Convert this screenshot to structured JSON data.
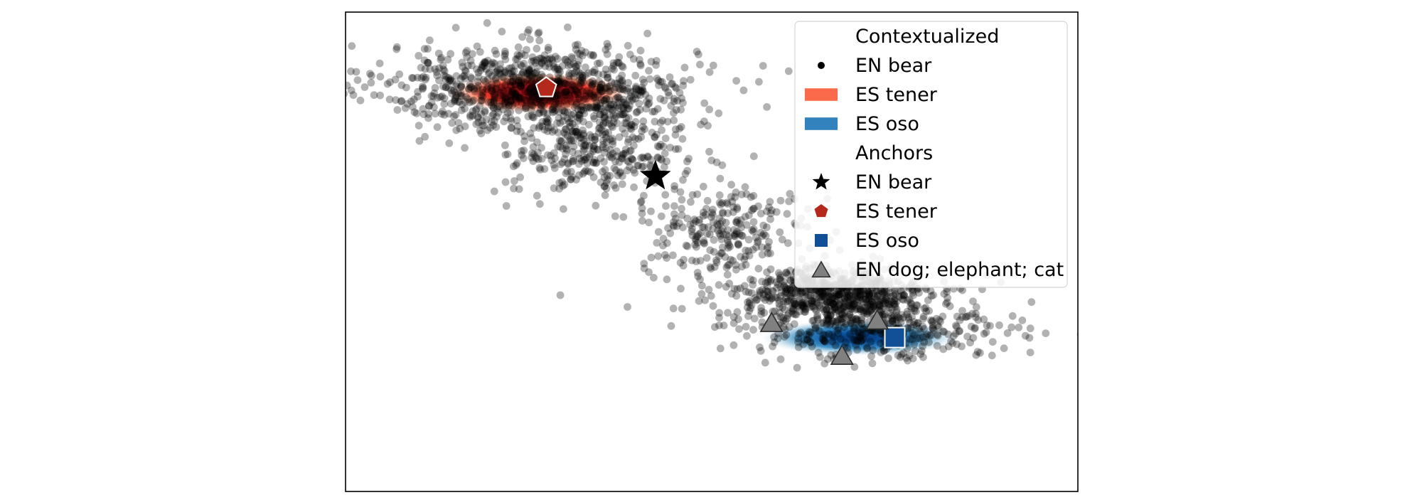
{
  "chart_data": {
    "type": "scatter",
    "title": "",
    "xlabel": "",
    "ylabel": "",
    "axes_ticks": "none",
    "grid": false,
    "legend_position": "top-right",
    "legend": {
      "sections": [
        {
          "heading": "Contextualized",
          "entries": [
            {
              "label": "EN bear",
              "marker": "dot",
              "color": "#000000"
            },
            {
              "label": "ES tener",
              "marker": "patch",
              "color": "#fb6a4a"
            },
            {
              "label": "ES oso",
              "marker": "patch",
              "color": "#3182bd"
            }
          ]
        },
        {
          "heading": "Anchors",
          "entries": [
            {
              "label": "EN bear",
              "marker": "star",
              "color": "#000000"
            },
            {
              "label": "ES tener",
              "marker": "pentagon",
              "color": "#b5281c"
            },
            {
              "label": "ES oso",
              "marker": "square",
              "color": "#114f97"
            },
            {
              "label": "EN dog; elephant; cat",
              "marker": "triangle",
              "color": "#808080"
            }
          ]
        }
      ]
    },
    "series": [
      {
        "name": "EN bear",
        "kind": "contextualized-scatter",
        "color": "#000000",
        "alpha": 0.3,
        "clusters": [
          {
            "center": [
              -0.55,
              0.62
            ],
            "spread": [
              0.22,
              0.085
            ],
            "count": 900
          },
          {
            "center": [
              -0.38,
              0.38
            ],
            "spread": [
              0.12,
              0.1
            ],
            "count": 350
          },
          {
            "center": [
              -0.02,
              0.05
            ],
            "spread": [
              0.12,
              0.09
            ],
            "count": 250
          },
          {
            "center": [
              0.28,
              -0.2
            ],
            "spread": [
              0.14,
              0.055
            ],
            "count": 650
          },
          {
            "center": [
              0.42,
              -0.33
            ],
            "spread": [
              0.18,
              0.065
            ],
            "count": 400
          }
        ]
      },
      {
        "name": "ES tener",
        "kind": "density",
        "colormap": "Reds",
        "center": [
          -0.55,
          0.6
        ],
        "spread": [
          0.26,
          0.05
        ]
      },
      {
        "name": "ES oso",
        "kind": "density",
        "colormap": "Blues",
        "center": [
          0.36,
          -0.37
        ],
        "spread": [
          0.28,
          0.045
        ]
      }
    ],
    "anchors": [
      {
        "label": "EN bear",
        "marker": "star",
        "x": -0.22,
        "y": 0.27,
        "color": "#000000"
      },
      {
        "label": "ES tener",
        "marker": "pentagon",
        "x": -0.53,
        "y": 0.62,
        "color": "#b5281c"
      },
      {
        "label": "ES oso",
        "marker": "square",
        "x": 0.46,
        "y": -0.37,
        "color": "#114f97"
      },
      {
        "label": "EN dog",
        "marker": "triangle",
        "x": 0.11,
        "y": -0.31,
        "color": "#808080"
      },
      {
        "label": "EN elephant",
        "marker": "triangle",
        "x": 0.41,
        "y": -0.3,
        "color": "#808080"
      },
      {
        "label": "EN cat",
        "marker": "triangle",
        "x": 0.31,
        "y": -0.44,
        "color": "#808080"
      }
    ],
    "xlim": [
      -1.1,
      0.98
    ],
    "ylim": [
      -0.98,
      0.92
    ]
  }
}
